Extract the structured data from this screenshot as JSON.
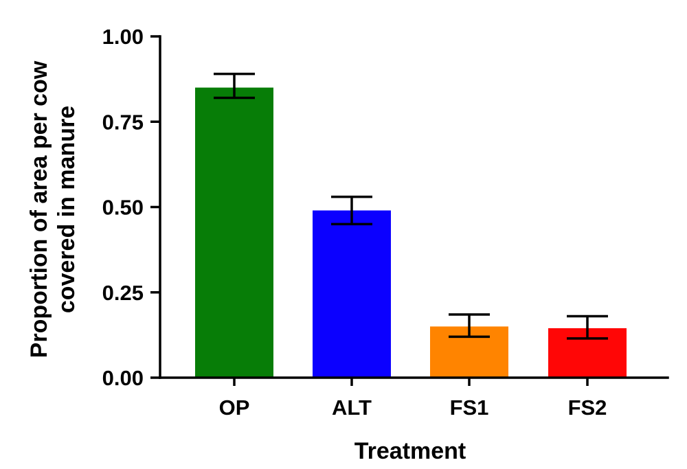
{
  "chart_data": {
    "type": "bar",
    "categories": [
      "OP",
      "ALT",
      "FS1",
      "FS2"
    ],
    "values": [
      0.85,
      0.49,
      0.15,
      0.145
    ],
    "error_low": [
      0.82,
      0.45,
      0.12,
      0.115
    ],
    "error_high": [
      0.89,
      0.53,
      0.185,
      0.18
    ],
    "colors": [
      "#077d07",
      "#0b00ff",
      "#ff8400",
      "#ff0606"
    ],
    "xlabel": "Treatment",
    "ylabel_lines": [
      "Proportion of area per cow",
      "covered in manure"
    ],
    "ylim": [
      0,
      1.0
    ],
    "yticks": [
      0.0,
      0.25,
      0.5,
      0.75,
      1.0
    ],
    "ytick_labels": [
      "0.00",
      "0.25",
      "0.50",
      "0.75",
      "1.00"
    ],
    "grid": false,
    "legend": "none"
  }
}
